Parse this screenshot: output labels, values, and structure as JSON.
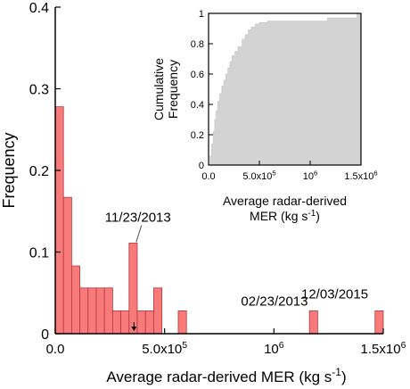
{
  "chart_data": [
    {
      "type": "bar",
      "ylabel": "Frequency",
      "xlabel_main": "Average radar-derived MER (kg s",
      "xlabel_sup": "-1",
      "xlabel_close": ")",
      "xlim": [
        0,
        1500000
      ],
      "ylim": [
        0,
        0.4
      ],
      "bin_width": 37500,
      "bins": [
        {
          "x0": 0,
          "value": 0.278
        },
        {
          "x0": 37500,
          "value": 0.167
        },
        {
          "x0": 75000,
          "value": 0.083
        },
        {
          "x0": 112500,
          "value": 0.056
        },
        {
          "x0": 150000,
          "value": 0.056
        },
        {
          "x0": 187500,
          "value": 0.056
        },
        {
          "x0": 225000,
          "value": 0.056
        },
        {
          "x0": 262500,
          "value": 0.028
        },
        {
          "x0": 300000,
          "value": 0.028
        },
        {
          "x0": 337500,
          "value": 0.111
        },
        {
          "x0": 375000,
          "value": 0.028
        },
        {
          "x0": 412500,
          "value": 0.028
        },
        {
          "x0": 450000,
          "value": 0.056
        },
        {
          "x0": 562500,
          "value": 0.028
        },
        {
          "x0": 1162500,
          "value": 0.028
        },
        {
          "x0": 1462500,
          "value": 0.028
        }
      ],
      "yticks": [
        {
          "value": 0,
          "label": "0"
        },
        {
          "value": 0.1,
          "label": "0.1"
        },
        {
          "value": 0.2,
          "label": "0.2"
        },
        {
          "value": 0.3,
          "label": "0.3"
        },
        {
          "value": 0.4,
          "label": "0.4"
        }
      ],
      "xticks": [
        {
          "value": 0,
          "mant": "0.0",
          "exp": ""
        },
        {
          "value": 500000,
          "mant": "5.0x10",
          "exp": "5"
        },
        {
          "value": 1000000,
          "mant": "10",
          "exp": "6"
        },
        {
          "value": 1500000,
          "mant": "1.5x10",
          "exp": "6"
        }
      ],
      "annotations": [
        {
          "text": "11/23/2013",
          "x": 370000,
          "y": 0.111
        },
        {
          "text": "02/23/2013",
          "x": 1180000,
          "y": 0.028
        },
        {
          "text": "12/03/2015",
          "x": 1480000,
          "y": 0.028
        }
      ],
      "marker": {
        "x": 360000,
        "y": 0.0
      }
    },
    {
      "type": "area",
      "ylabel_lines": [
        "Cumulative",
        "Frequency"
      ],
      "xlabel_lines": [
        "Average radar-derived",
        "MER (kg s"
      ],
      "xlabel_sup": "-1",
      "xlabel_close": ")",
      "xlim": [
        0,
        1500000
      ],
      "ylim": [
        0,
        1
      ],
      "steps": [
        [
          0,
          0
        ],
        [
          15000,
          0.06
        ],
        [
          30000,
          0.14
        ],
        [
          45000,
          0.22
        ],
        [
          60000,
          0.3
        ],
        [
          75000,
          0.36
        ],
        [
          90000,
          0.42
        ],
        [
          110000,
          0.47
        ],
        [
          130000,
          0.52
        ],
        [
          150000,
          0.56
        ],
        [
          170000,
          0.6
        ],
        [
          190000,
          0.64
        ],
        [
          210000,
          0.68
        ],
        [
          230000,
          0.72
        ],
        [
          260000,
          0.75
        ],
        [
          290000,
          0.78
        ],
        [
          330000,
          0.83
        ],
        [
          360000,
          0.86
        ],
        [
          390000,
          0.89
        ],
        [
          420000,
          0.91
        ],
        [
          460000,
          0.93
        ],
        [
          500000,
          0.94
        ],
        [
          580000,
          0.95
        ],
        [
          1170000,
          0.97
        ],
        [
          1460000,
          1.0
        ],
        [
          1500000,
          1.0
        ]
      ],
      "yticks": [
        {
          "value": 0,
          "label": "0"
        },
        {
          "value": 0.2,
          "label": "0.2"
        },
        {
          "value": 0.4,
          "label": "0.4"
        },
        {
          "value": 0.6,
          "label": "0.6"
        },
        {
          "value": 0.8,
          "label": "0.8"
        },
        {
          "value": 1,
          "label": "1"
        }
      ],
      "xticks": [
        {
          "value": 0,
          "mant": "0.0",
          "exp": ""
        },
        {
          "value": 500000,
          "mant": "5.0x10",
          "exp": "5"
        },
        {
          "value": 1000000,
          "mant": "10",
          "exp": "6"
        },
        {
          "value": 1500000,
          "mant": "1.5x10",
          "exp": "6"
        }
      ]
    }
  ],
  "colors": {
    "bar_fill": "#f87a7a",
    "bar_stroke": "#b33a3a",
    "inset_fill": "#d3d3d3",
    "axis": "#000000"
  }
}
